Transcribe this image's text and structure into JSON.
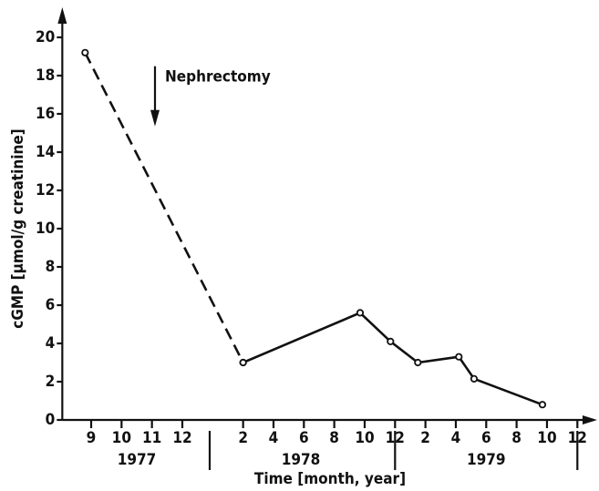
{
  "chart_data": {
    "type": "line",
    "x_label": "Time [month, year]",
    "y_label": "cGMP [µmol/g creatinine]",
    "series": [
      {
        "x": [
          8.8,
          14
        ],
        "values": [
          19.2,
          3.0
        ],
        "dashed": true,
        "color": "#111111"
      },
      {
        "x": [
          14,
          21.7,
          23.7,
          25.5,
          28.2,
          29.2,
          33.7
        ],
        "values": [
          3.0,
          5.6,
          4.1,
          3.0,
          3.3,
          2.15,
          0.8
        ],
        "dashed": false,
        "color": "#111111"
      }
    ],
    "xlim": [
      8.05,
      37.3
    ],
    "ylim": [
      0,
      20
    ],
    "yticks": [
      0,
      2,
      4,
      6,
      8,
      10,
      12,
      14,
      16,
      18,
      20
    ],
    "xticks": [
      {
        "value": 9,
        "label": "9"
      },
      {
        "value": 10,
        "label": "10"
      },
      {
        "value": 11,
        "label": "11"
      },
      {
        "value": 12,
        "label": "12"
      },
      {
        "value": 14,
        "label": "2"
      },
      {
        "value": 16,
        "label": "4"
      },
      {
        "value": 18,
        "label": "6"
      },
      {
        "value": 20,
        "label": "8"
      },
      {
        "value": 22,
        "label": "10"
      },
      {
        "value": 24,
        "label": "12"
      },
      {
        "value": 26,
        "label": "2"
      },
      {
        "value": 28,
        "label": "4"
      },
      {
        "value": 30,
        "label": "6"
      },
      {
        "value": 32,
        "label": "8"
      },
      {
        "value": 34,
        "label": "10"
      },
      {
        "value": 36,
        "label": "12"
      }
    ],
    "years": [
      {
        "label": "1977",
        "x": 10.5
      },
      {
        "label": "1978",
        "x": 17.8
      },
      {
        "label": "1979",
        "x": 30
      }
    ],
    "year_dividers": [
      12.9,
      24,
      36
    ],
    "annotation": {
      "text": "Nephrectomy",
      "x": 11.1,
      "y": 18.3
    }
  }
}
